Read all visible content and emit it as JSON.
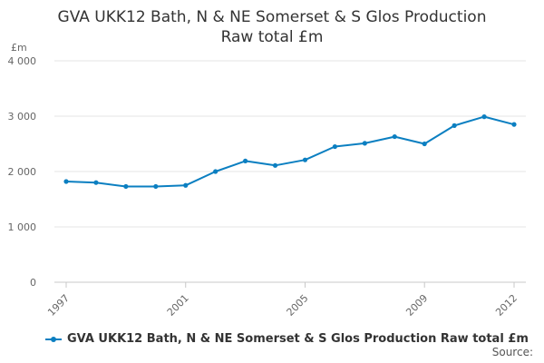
{
  "chart_data": {
    "type": "line",
    "title_line1": "GVA UKK12 Bath, N & NE Somerset & S Glos Production",
    "title_line2": "Raw total £m",
    "yunit": "£m",
    "ylim": [
      0,
      4000
    ],
    "y_ticks": [
      "0",
      "1 000",
      "2 000",
      "3 000",
      "4 000"
    ],
    "y_tick_values": [
      0,
      1000,
      2000,
      3000,
      4000
    ],
    "x_tick_labels": [
      "1997",
      "2001",
      "2005",
      "2009",
      "2012"
    ],
    "x_tick_values": [
      1997,
      2001,
      2005,
      2009,
      2012
    ],
    "x": [
      1997,
      1998,
      1999,
      2000,
      2001,
      2002,
      2003,
      2004,
      2005,
      2006,
      2007,
      2008,
      2009,
      2010,
      2011,
      2012
    ],
    "series": [
      {
        "name": "GVA UKK12 Bath, N & NE Somerset & S Glos Production Raw total £m",
        "color": "#0b7fc1",
        "values": [
          1820,
          1800,
          1730,
          1730,
          1750,
          2000,
          2190,
          2110,
          2210,
          2450,
          2510,
          2630,
          2500,
          2830,
          2990,
          2850
        ]
      }
    ],
    "grid": "horizontal",
    "legend_position": "bottom-left"
  },
  "footer": {
    "source_label": "Source:"
  }
}
